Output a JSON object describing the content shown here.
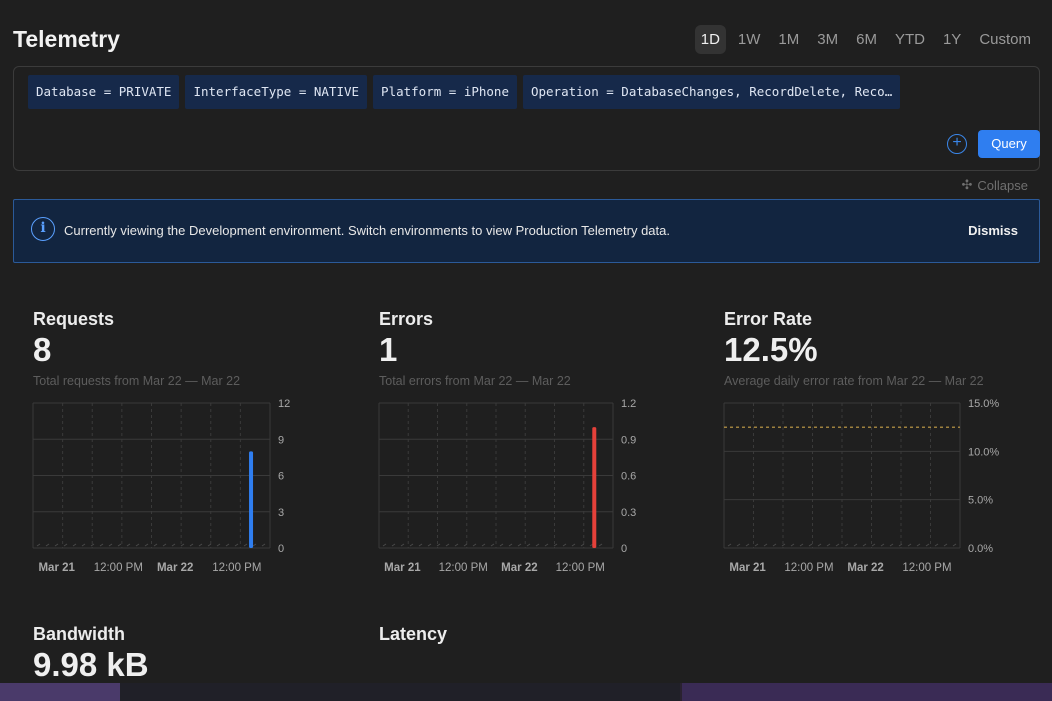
{
  "page": {
    "title": "Telemetry",
    "ranges": [
      "1D",
      "1W",
      "1M",
      "3M",
      "6M",
      "YTD",
      "1Y",
      "Custom"
    ],
    "active_range": "1D"
  },
  "filters": {
    "chips": [
      "Database = PRIVATE",
      "InterfaceType = NATIVE",
      "Platform = iPhone",
      "Operation = DatabaseChanges, RecordDelete, Reco…"
    ],
    "add_icon": "plus-circle-icon",
    "query_label": "Query",
    "collapse_label": "Collapse"
  },
  "banner": {
    "icon": "info-icon",
    "text": "Currently viewing the Development environment. Switch environments to view Production Telemetry data.",
    "dismiss_label": "Dismiss"
  },
  "metrics": {
    "requests": {
      "title": "Requests",
      "value": "8",
      "subtitle": "Total requests from Mar 22 — Mar 22"
    },
    "errors": {
      "title": "Errors",
      "value": "1",
      "subtitle": "Total errors from Mar 22 — Mar 22"
    },
    "error_rate": {
      "title": "Error Rate",
      "value": "12.5%",
      "subtitle": "Average daily error rate from Mar 22 — Mar 22"
    },
    "bandwidth": {
      "title": "Bandwidth",
      "value": "9.98 kB"
    },
    "latency": {
      "title": "Latency"
    }
  },
  "chart_data": [
    {
      "type": "bar",
      "name": "requests",
      "x_ticks": [
        "Mar 21",
        "12:00 PM",
        "Mar 22",
        "12:00 PM"
      ],
      "y_ticks": [
        "12",
        "9",
        "6",
        "3",
        "0"
      ],
      "ylim": [
        0,
        12
      ],
      "values": [
        8
      ],
      "bar_position": 0.92,
      "color": "#2f7ef0"
    },
    {
      "type": "bar",
      "name": "errors",
      "x_ticks": [
        "Mar 21",
        "12:00 PM",
        "Mar 22",
        "12:00 PM"
      ],
      "y_ticks": [
        "1.2",
        "0.9",
        "0.6",
        "0.3",
        "0"
      ],
      "ylim": [
        0,
        1.2
      ],
      "values": [
        1
      ],
      "bar_position": 0.92,
      "color": "#e5413a"
    },
    {
      "type": "line",
      "name": "error_rate",
      "x_ticks": [
        "Mar 21",
        "12:00 PM",
        "Mar 22",
        "12:00 PM"
      ],
      "y_ticks": [
        "15.0%",
        "10.0%",
        "5.0%",
        "0.0%"
      ],
      "ylim": [
        0,
        15
      ],
      "values": [
        12.5
      ],
      "color": "#c9a24a"
    }
  ]
}
